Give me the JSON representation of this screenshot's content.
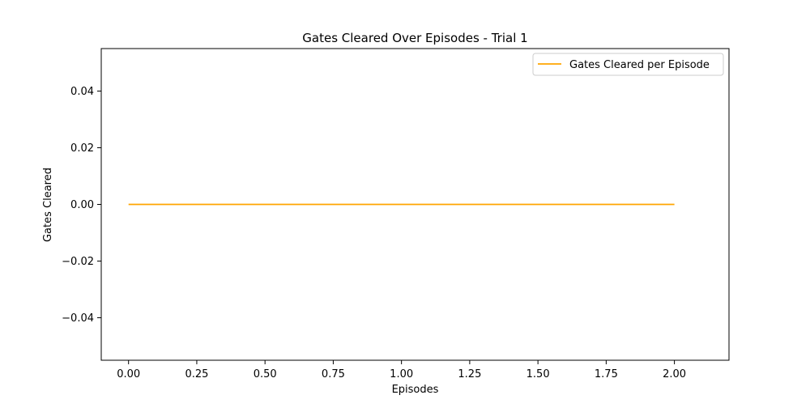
{
  "chart_data": {
    "type": "line",
    "title": "Gates Cleared Over Episodes - Trial 1",
    "xlabel": "Episodes",
    "ylabel": "Gates Cleared",
    "xlim": [
      -0.1,
      2.2
    ],
    "ylim": [
      -0.055,
      0.055
    ],
    "xticks": [
      0.0,
      0.25,
      0.5,
      0.75,
      1.0,
      1.25,
      1.5,
      1.75,
      2.0
    ],
    "xtick_labels": [
      "0.00",
      "0.25",
      "0.50",
      "0.75",
      "1.00",
      "1.25",
      "1.50",
      "1.75",
      "2.00"
    ],
    "yticks": [
      -0.04,
      -0.02,
      0.0,
      0.02,
      0.04
    ],
    "ytick_labels": [
      "−0.04",
      "−0.02",
      "0.00",
      "0.02",
      "0.04"
    ],
    "grid": false,
    "legend_position": "upper right",
    "series": [
      {
        "name": "Gates Cleared per Episode",
        "color": "#ffa500",
        "x": [
          0,
          1,
          2
        ],
        "y": [
          0,
          0,
          0
        ]
      }
    ]
  }
}
